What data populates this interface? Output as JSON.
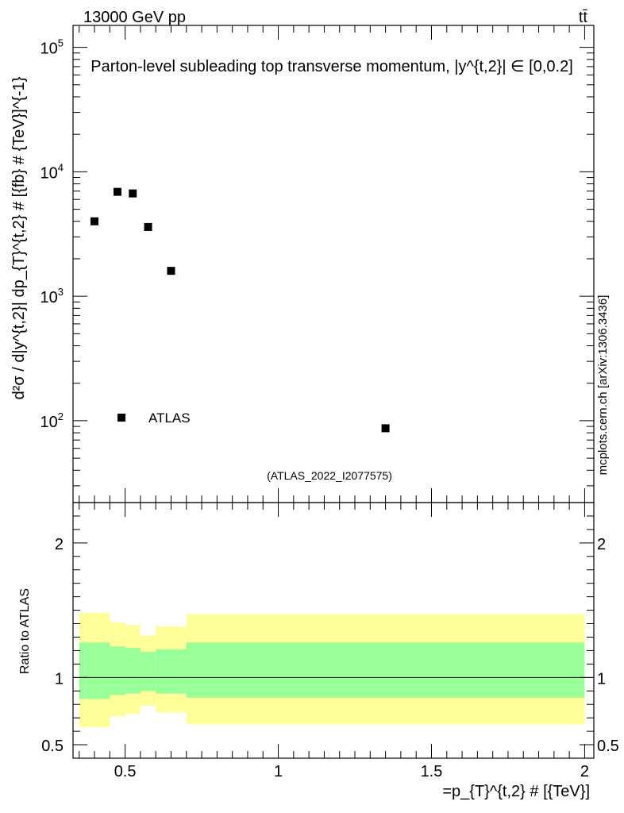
{
  "header": {
    "energy_label": "13000 GeV pp",
    "process_label": "tt̄"
  },
  "side_label": "mcplots.cern.ch [arXiv:1306.3436]",
  "chart_data": [
    {
      "type": "scatter",
      "panel": "main",
      "title": "Parton-level subleading top transverse momentum, |y^{t,2}| ∈ [0,0.2]",
      "ylabel": "d²σ / d|y^{t,2}| dp_{T}^{t,2} # [{fb} # {TeV}]^{-1}",
      "yscale": "log",
      "ylim": [
        22,
        150000
      ],
      "xlim": [
        0.33,
        2.03
      ],
      "series": [
        {
          "name": "ATLAS",
          "points": [
            {
              "x": 0.4,
              "y": 4000
            },
            {
              "x": 0.475,
              "y": 6900
            },
            {
              "x": 0.525,
              "y": 6700
            },
            {
              "x": 0.575,
              "y": 3600
            },
            {
              "x": 0.65,
              "y": 1600
            },
            {
              "x": 1.35,
              "y": 87
            }
          ]
        }
      ],
      "legend": [
        {
          "label": "ATLAS",
          "marker": "square"
        }
      ],
      "y_tick_labels": [
        {
          "value": 100,
          "base": "10",
          "exp": "2"
        },
        {
          "value": 1000,
          "base": "10",
          "exp": "3"
        },
        {
          "value": 10000,
          "base": "10",
          "exp": "4"
        },
        {
          "value": 100000,
          "base": "10",
          "exp": "5"
        }
      ],
      "watermark": "(ATLAS_2022_I2077575)"
    },
    {
      "type": "area",
      "panel": "ratio",
      "ylabel": "Ratio to ATLAS",
      "xlabel": "=p_{T}^{t,2} # [{TeV}]",
      "ylim": [
        0.4,
        2.3
      ],
      "xlim": [
        0.33,
        2.03
      ],
      "bins": [
        {
          "xlo": 0.35,
          "xhi": 0.45,
          "yellow": [
            0.63,
            1.48
          ],
          "green": [
            0.84,
            1.26
          ]
        },
        {
          "xlo": 0.45,
          "xhi": 0.5,
          "yellow": [
            0.71,
            1.41
          ],
          "green": [
            0.87,
            1.23
          ]
        },
        {
          "xlo": 0.5,
          "xhi": 0.55,
          "yellow": [
            0.73,
            1.39
          ],
          "green": [
            0.88,
            1.22
          ]
        },
        {
          "xlo": 0.55,
          "xhi": 0.6,
          "yellow": [
            0.79,
            1.31
          ],
          "green": [
            0.9,
            1.19
          ]
        },
        {
          "xlo": 0.6,
          "xhi": 0.7,
          "yellow": [
            0.74,
            1.38
          ],
          "green": [
            0.88,
            1.21
          ]
        },
        {
          "xlo": 0.7,
          "xhi": 2.0,
          "yellow": [
            0.65,
            1.47
          ],
          "green": [
            0.85,
            1.26
          ]
        }
      ],
      "reference_line": 1,
      "y_tick_labels": [
        {
          "value": 0.5,
          "label": "0.5"
        },
        {
          "value": 1,
          "label": "1"
        },
        {
          "value": 2,
          "label": "2"
        }
      ],
      "x_tick_labels": [
        {
          "value": 0.5,
          "label": "0.5"
        },
        {
          "value": 1,
          "label": "1"
        },
        {
          "value": 1.5,
          "label": "1.5"
        },
        {
          "value": 2,
          "label": "2"
        }
      ]
    }
  ],
  "colors": {
    "yellow_band": "#ffff99",
    "green_band": "#99ff99",
    "marker": "#000000",
    "watermark": "#999999",
    "side_label": "#777777"
  }
}
